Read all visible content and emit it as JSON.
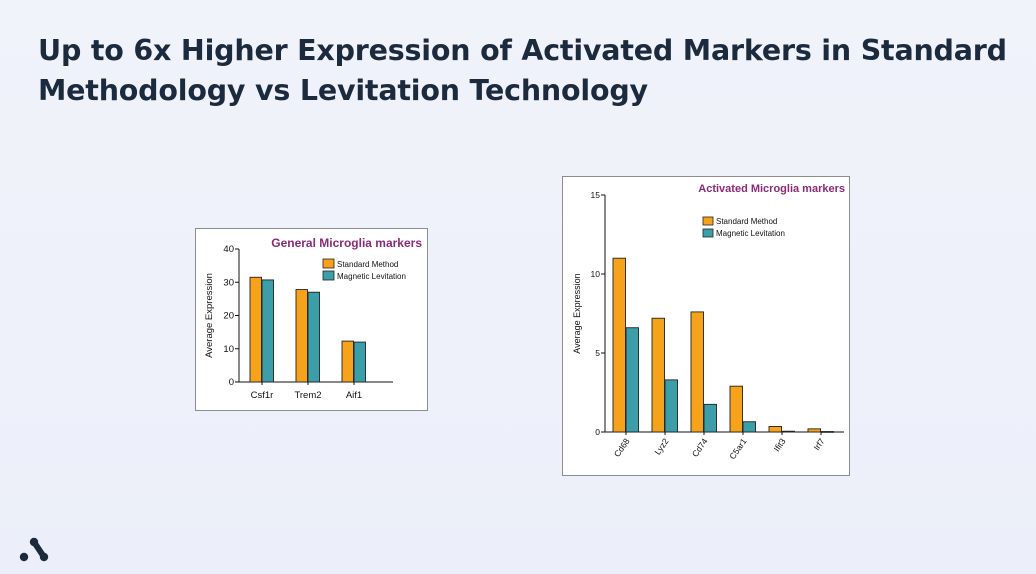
{
  "slide": {
    "title_line1": "Up to 6x Higher Expression of Activated Markers in Standard",
    "title_line2": "Methodology vs Levitation Technology"
  },
  "colors": {
    "standard": "#f7a21b",
    "levitation": "#3b9ea8",
    "title_accent": "#8b2a78",
    "slide_title": "#1c2a3d",
    "logo": "#1c2a3d"
  },
  "logo": {
    "icon": "brand-logo-icon"
  },
  "chart_data": [
    {
      "type": "bar",
      "title": "General Microglia markers",
      "ylabel": "Average Expression",
      "xlabel": "",
      "ylim": [
        0,
        40
      ],
      "yticks": [
        0,
        10,
        20,
        30,
        40
      ],
      "categories": [
        "Csf1r",
        "Trem2",
        "Aif1"
      ],
      "series": [
        {
          "name": "Standard Method",
          "values": [
            31.5,
            27.8,
            12.3
          ]
        },
        {
          "name": "Magnetic Levitation",
          "values": [
            30.7,
            27.0,
            12.0
          ]
        }
      ],
      "legend": "top-right",
      "grid": false
    },
    {
      "type": "bar",
      "title": "Activated Microglia markers",
      "ylabel": "Average Expression",
      "xlabel": "",
      "ylim": [
        0,
        15
      ],
      "yticks": [
        0,
        5,
        10,
        15
      ],
      "categories": [
        "Cd68",
        "Lyz2",
        "Cd74",
        "C5ar1",
        "Ifit3",
        "Irf7"
      ],
      "series": [
        {
          "name": "Standard Method",
          "values": [
            11.0,
            7.2,
            7.6,
            2.9,
            0.35,
            0.2
          ]
        },
        {
          "name": "Magnetic Levitation",
          "values": [
            6.6,
            3.3,
            1.75,
            0.65,
            0.05,
            0.03
          ]
        }
      ],
      "legend": "top-right",
      "grid": false
    }
  ]
}
